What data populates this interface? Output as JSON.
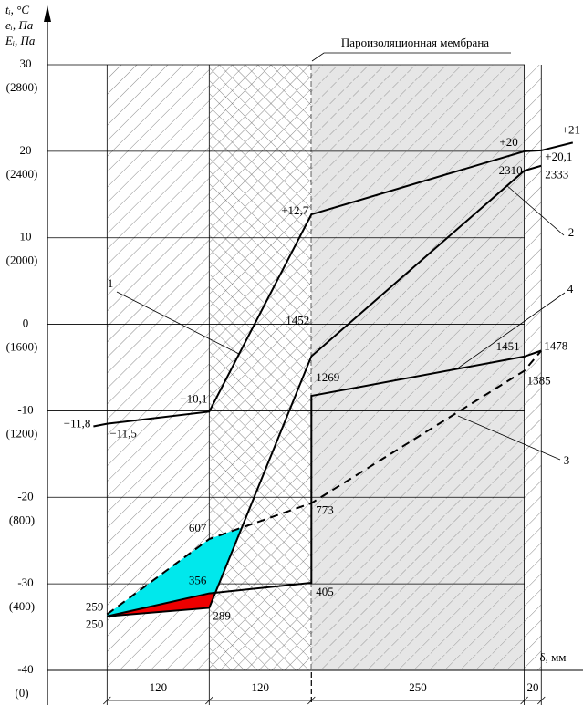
{
  "chart_data": {
    "type": "line",
    "ylabel": "tᵢ, °C",
    "y2labels": [
      "eᵢ, Па",
      "Eᵢ, Па"
    ],
    "xlabel": "δ, мм",
    "annotation": "Пароизоляционная мембрана",
    "layers": [
      120,
      120,
      250,
      20
    ],
    "xlim": [
      -70,
      559
    ],
    "ylim": [
      -40,
      30
    ],
    "yticks": [
      -40,
      -30,
      -20,
      -10,
      0,
      10,
      20,
      30
    ],
    "y2lim": [
      0,
      2800
    ],
    "y2ticks": [
      {
        "value": 0,
        "label": "(0)"
      },
      {
        "value": 400,
        "label": "(400)"
      },
      {
        "value": 800,
        "label": "(800)"
      },
      {
        "value": 1200,
        "label": "(1200)"
      },
      {
        "value": 1600,
        "label": "(1600)"
      },
      {
        "value": 2000,
        "label": "(2000)"
      },
      {
        "value": 2400,
        "label": "(2400)"
      },
      {
        "value": 2800,
        "label": "(2800)"
      }
    ],
    "grid": true,
    "fill_colors": [
      "#00e8ec",
      "#ee0000"
    ],
    "series": [
      {
        "name": "1",
        "color": "#000000",
        "x": [
          -16,
          0,
          120,
          240,
          490,
          510,
          547
        ],
        "values": [
          -11.8,
          -11.5,
          -10.1,
          12.7,
          20,
          20.1,
          21
        ],
        "value_labels": [
          "−11,8",
          "−11,5",
          "−10,1",
          "+12,7",
          "+20",
          "+20,1",
          "+21"
        ]
      },
      {
        "name": "2",
        "color": "#000000",
        "axis": "y2",
        "x": [
          0,
          120,
          240,
          490,
          510
        ],
        "values": [
          250,
          289,
          1452,
          2310,
          2333
        ]
      },
      {
        "name": "3",
        "color": "#000000",
        "axis": "y2",
        "dashed": true,
        "x": [
          0,
          120,
          240,
          490,
          510
        ],
        "values": [
          259,
          607,
          773,
          1385,
          1478
        ]
      },
      {
        "name": "4",
        "color": "#000000",
        "axis": "y2",
        "x": [
          0,
          120,
          240,
          240,
          490,
          510
        ],
        "values": [
          250,
          356,
          405,
          1269,
          1451,
          1478
        ]
      }
    ]
  }
}
